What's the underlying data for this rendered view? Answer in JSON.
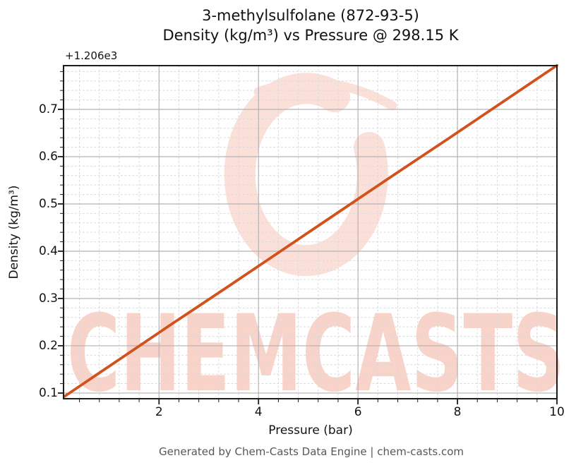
{
  "figure": {
    "title_line1": "3-methylsulfolane (872-93-5)",
    "title_line2": "Density (kg/m³) vs Pressure @ 298.15 K",
    "footer": "Generated by Chem-Casts Data Engine | chem-casts.com"
  },
  "watermark": {
    "text": "CHEMCASTS",
    "text_color": "#f8d3ca",
    "ring_color": "#fbe0d9"
  },
  "chart_data": {
    "type": "line",
    "title": "3-methylsulfolane (872-93-5)",
    "subtitle": "Density (kg/m³) vs Pressure @ 298.15 K",
    "xlabel": "Pressure (bar)",
    "ylabel": "Density (kg/m³)",
    "y_offset_label": "+1.206e3",
    "y_offset": 1206,
    "xlim": [
      0.08,
      10
    ],
    "ylim": [
      1206.088,
      1206.7925
    ],
    "x_ticks": [
      2,
      4,
      6,
      8,
      10
    ],
    "x_tick_labels": [
      "2",
      "4",
      "6",
      "8",
      "10"
    ],
    "y_ticks": [
      0.1,
      0.2,
      0.3,
      0.4,
      0.5,
      0.6,
      0.7
    ],
    "y_tick_labels": [
      "0.1",
      "0.2",
      "0.3",
      "0.4",
      "0.5",
      "0.6",
      "0.7"
    ],
    "x_minor_step": 0.4,
    "y_minor_step": 0.02,
    "grid": "both",
    "legend": "none",
    "series": [
      {
        "name": "Density",
        "x": [
          0.1,
          1.2,
          2.3,
          3.4,
          4.5,
          5.6,
          6.7,
          7.8,
          8.9,
          10.0
        ],
        "y": [
          1206.093,
          1206.171,
          1206.249,
          1206.326,
          1206.404,
          1206.482,
          1206.56,
          1206.637,
          1206.715,
          1206.793
        ]
      }
    ],
    "style": {
      "line_color": "#d2521c",
      "line_width": 3.8,
      "grid_major_color": "#b2b2b2",
      "grid_minor_color": "#d9d9d9",
      "spine_color": "#1c1c1c"
    }
  }
}
